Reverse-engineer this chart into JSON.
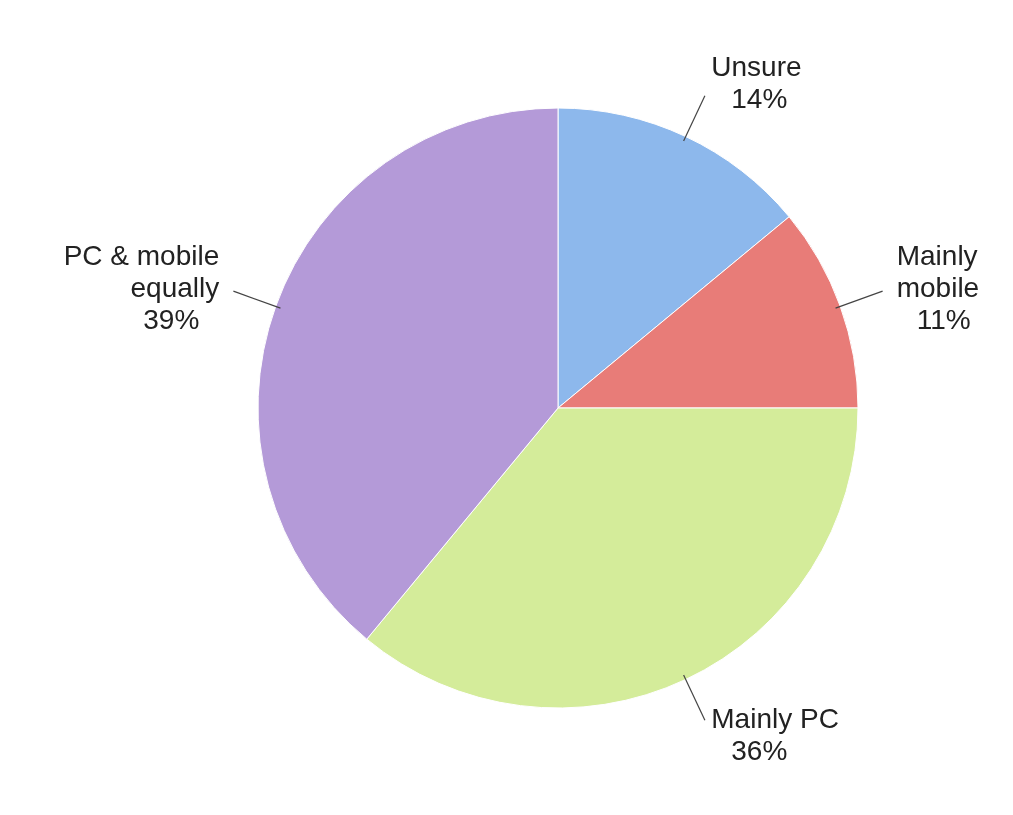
{
  "chart_data": {
    "type": "pie",
    "categories": [
      "Unsure",
      "Mainly mobile",
      "Mainly PC",
      "PC & mobile equally"
    ],
    "values": [
      14,
      11,
      36,
      39
    ],
    "colors": [
      "#8db8ec",
      "#e87c78",
      "#d4ec9a",
      "#b49ad8"
    ],
    "value_labels": [
      "14%",
      "11%",
      "36%",
      "39%"
    ]
  }
}
